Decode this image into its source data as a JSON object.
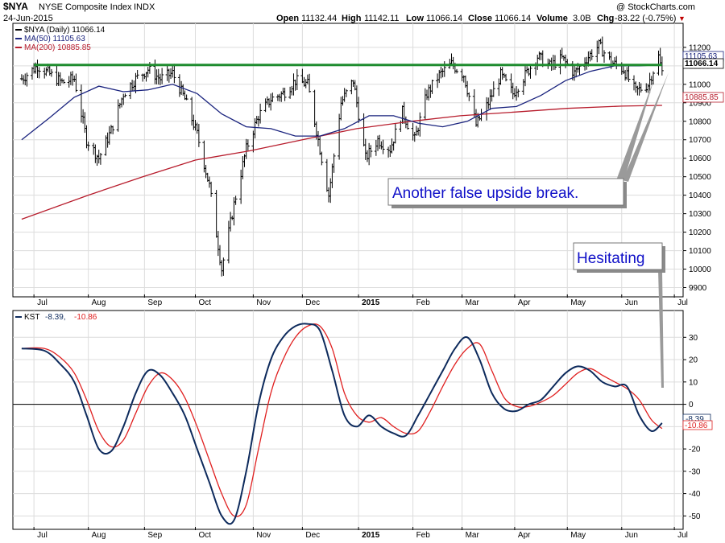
{
  "header": {
    "symbol": "$NYA",
    "name": "NYSE Composite Index",
    "exchange": "INDX",
    "date": "24-Jun-2015",
    "open_label": "Open",
    "open": "11132.44",
    "high_label": "High",
    "high": "11142.11",
    "low_label": "Low",
    "low": "11066.14",
    "close_label": "Close",
    "close": "11066.14",
    "volume_label": "Volume",
    "volume": "3.0B",
    "chg_label": "Chg",
    "chg": "-83.22 (-0.75%)",
    "chg_arrow": "▼",
    "watermark": "@ StockCharts.com"
  },
  "colors": {
    "price": "#000000",
    "ma50": "#1a237e",
    "ma200": "#b71c2c",
    "kst": "#0d2a5c",
    "kst_signal": "#e02020",
    "resistance": "#1e8c2e",
    "annotation": "#1010c8",
    "down_arrow": "#c00000"
  },
  "legend": {
    "price": "$NYA (Daily) 11066.14",
    "ma50": "MA(50) 11105.63",
    "ma200": "MA(200) 10885.85",
    "kst_name": "KST",
    "kst_value": "-8.39,",
    "kst_signal_value": "-10.86"
  },
  "tags": {
    "ma50": "11105.63",
    "close": "11066.14",
    "ma200": "10885.85",
    "kst": "-8.39",
    "kst_signal": "-10.86"
  },
  "annotations": {
    "upside_break": "Another false upside break.",
    "hesitating": "Hesitating"
  },
  "chart_data": {
    "type": "line",
    "title": "NYSE Composite Index",
    "x_months": [
      "Jul",
      "Aug",
      "Sep",
      "Oct",
      "Nov",
      "Dec",
      "2015",
      "Feb",
      "Mar",
      "Apr",
      "May",
      "Jun",
      "Jul"
    ],
    "price_panel": {
      "ylim": [
        9850,
        11330
      ],
      "yticks": [
        9900,
        10000,
        10100,
        10200,
        10300,
        10400,
        10500,
        10600,
        10700,
        10800,
        10900,
        11000,
        11100,
        11200
      ],
      "resistance_level": 11105,
      "series": [
        {
          "name": "$NYA (Daily)",
          "style": "ohlc",
          "points": [
            [
              "2014-06-24",
              11030
            ],
            [
              "2014-07-03",
              11100
            ],
            [
              "2014-07-17",
              11010
            ],
            [
              "2014-07-24",
              11030
            ],
            [
              "2014-07-31",
              10700
            ],
            [
              "2014-08-07",
              10600
            ],
            [
              "2014-08-14",
              10750
            ],
            [
              "2014-08-21",
              10950
            ],
            [
              "2014-08-28",
              11030
            ],
            [
              "2014-09-04",
              11080
            ],
            [
              "2014-09-11",
              11030
            ],
            [
              "2014-09-18",
              11060
            ],
            [
              "2014-09-25",
              10920
            ],
            [
              "2014-10-02",
              10730
            ],
            [
              "2014-10-09",
              10450
            ],
            [
              "2014-10-16",
              10000
            ],
            [
              "2014-10-23",
              10350
            ],
            [
              "2014-10-30",
              10650
            ],
            [
              "2014-11-06",
              10830
            ],
            [
              "2014-11-13",
              10920
            ],
            [
              "2014-11-20",
              10950
            ],
            [
              "2014-11-27",
              11020
            ],
            [
              "2014-12-04",
              11000
            ],
            [
              "2014-12-11",
              10650
            ],
            [
              "2014-12-16",
              10400
            ],
            [
              "2014-12-23",
              10900
            ],
            [
              "2014-12-30",
              11020
            ],
            [
              "2015-01-06",
              10600
            ],
            [
              "2015-01-13",
              10700
            ],
            [
              "2015-01-20",
              10650
            ],
            [
              "2015-01-27",
              10850
            ],
            [
              "2015-02-03",
              10700
            ],
            [
              "2015-02-10",
              10950
            ],
            [
              "2015-02-17",
              11050
            ],
            [
              "2015-02-24",
              11110
            ],
            [
              "2015-03-03",
              11050
            ],
            [
              "2015-03-10",
              10780
            ],
            [
              "2015-03-17",
              10900
            ],
            [
              "2015-03-24",
              11050
            ],
            [
              "2015-03-31",
              10950
            ],
            [
              "2015-04-07",
              11050
            ],
            [
              "2015-04-14",
              11150
            ],
            [
              "2015-04-21",
              11100
            ],
            [
              "2015-04-28",
              11140
            ],
            [
              "2015-05-05",
              11060
            ],
            [
              "2015-05-12",
              11140
            ],
            [
              "2015-05-19",
              11210
            ],
            [
              "2015-05-26",
              11120
            ],
            [
              "2015-06-02",
              11080
            ],
            [
              "2015-06-09",
              10960
            ],
            [
              "2015-06-16",
              11000
            ],
            [
              "2015-06-22",
              11150
            ],
            [
              "2015-06-24",
              11066
            ]
          ]
        },
        {
          "name": "MA(50)",
          "style": "line",
          "points": [
            [
              "2014-06-24",
              10700
            ],
            [
              "2014-07-10",
              10820
            ],
            [
              "2014-07-24",
              10930
            ],
            [
              "2014-08-07",
              10990
            ],
            [
              "2014-08-21",
              10960
            ],
            [
              "2014-09-04",
              10970
            ],
            [
              "2014-09-18",
              11000
            ],
            [
              "2014-10-02",
              10950
            ],
            [
              "2014-10-16",
              10840
            ],
            [
              "2014-10-30",
              10770
            ],
            [
              "2014-11-13",
              10760
            ],
            [
              "2014-11-27",
              10720
            ],
            [
              "2014-12-11",
              10720
            ],
            [
              "2014-12-25",
              10760
            ],
            [
              "2015-01-08",
              10830
            ],
            [
              "2015-01-22",
              10830
            ],
            [
              "2015-02-05",
              10790
            ],
            [
              "2015-02-19",
              10770
            ],
            [
              "2015-03-05",
              10800
            ],
            [
              "2015-03-19",
              10870
            ],
            [
              "2015-04-02",
              10880
            ],
            [
              "2015-04-16",
              10940
            ],
            [
              "2015-04-30",
              11020
            ],
            [
              "2015-05-14",
              11070
            ],
            [
              "2015-05-28",
              11100
            ],
            [
              "2015-06-11",
              11100
            ],
            [
              "2015-06-24",
              11105.63
            ]
          ]
        },
        {
          "name": "MA(200)",
          "style": "line",
          "points": [
            [
              "2014-06-24",
              10270
            ],
            [
              "2014-08-01",
              10400
            ],
            [
              "2014-09-01",
              10500
            ],
            [
              "2014-10-01",
              10590
            ],
            [
              "2014-11-01",
              10640
            ],
            [
              "2014-12-01",
              10700
            ],
            [
              "2015-01-01",
              10760
            ],
            [
              "2015-02-01",
              10800
            ],
            [
              "2015-03-01",
              10830
            ],
            [
              "2015-04-01",
              10850
            ],
            [
              "2015-05-01",
              10870
            ],
            [
              "2015-06-01",
              10882
            ],
            [
              "2015-06-24",
              10885.85
            ]
          ]
        }
      ]
    },
    "indicator_panel": {
      "name": "KST",
      "ylim": [
        -56,
        42
      ],
      "yticks": [
        -50,
        -40,
        -30,
        -20,
        -10,
        0,
        10,
        20,
        30
      ],
      "zero_line": 0,
      "series": [
        {
          "name": "KST",
          "points": [
            [
              "2014-06-24",
              25
            ],
            [
              "2014-07-07",
              24
            ],
            [
              "2014-07-16",
              18
            ],
            [
              "2014-07-24",
              10
            ],
            [
              "2014-07-31",
              -5
            ],
            [
              "2014-08-07",
              -20
            ],
            [
              "2014-08-14",
              -21
            ],
            [
              "2014-08-21",
              -10
            ],
            [
              "2014-08-28",
              5
            ],
            [
              "2014-09-04",
              15
            ],
            [
              "2014-09-11",
              13
            ],
            [
              "2014-09-18",
              5
            ],
            [
              "2014-09-25",
              -5
            ],
            [
              "2014-10-02",
              -20
            ],
            [
              "2014-10-09",
              -35
            ],
            [
              "2014-10-16",
              -50
            ],
            [
              "2014-10-23",
              -52
            ],
            [
              "2014-10-30",
              -30
            ],
            [
              "2014-11-06",
              0
            ],
            [
              "2014-11-13",
              20
            ],
            [
              "2014-11-20",
              30
            ],
            [
              "2014-11-27",
              35
            ],
            [
              "2014-12-04",
              36
            ],
            [
              "2014-12-11",
              33
            ],
            [
              "2014-12-18",
              15
            ],
            [
              "2014-12-25",
              -5
            ],
            [
              "2015-01-01",
              -10
            ],
            [
              "2015-01-08",
              -5
            ],
            [
              "2015-01-15",
              -10
            ],
            [
              "2015-01-22",
              -13
            ],
            [
              "2015-01-29",
              -14
            ],
            [
              "2015-02-05",
              -5
            ],
            [
              "2015-02-12",
              5
            ],
            [
              "2015-02-19",
              15
            ],
            [
              "2015-02-26",
              25
            ],
            [
              "2015-03-05",
              30
            ],
            [
              "2015-03-12",
              20
            ],
            [
              "2015-03-19",
              5
            ],
            [
              "2015-03-26",
              -2
            ],
            [
              "2015-04-02",
              -3
            ],
            [
              "2015-04-09",
              0
            ],
            [
              "2015-04-16",
              2
            ],
            [
              "2015-04-23",
              8
            ],
            [
              "2015-04-30",
              14
            ],
            [
              "2015-05-07",
              17
            ],
            [
              "2015-05-14",
              15
            ],
            [
              "2015-05-21",
              10
            ],
            [
              "2015-05-28",
              8
            ],
            [
              "2015-06-04",
              8
            ],
            [
              "2015-06-11",
              -5
            ],
            [
              "2015-06-18",
              -12
            ],
            [
              "2015-06-24",
              -8.39
            ]
          ]
        },
        {
          "name": "KST Signal",
          "points": [
            [
              "2014-06-24",
              25
            ],
            [
              "2014-07-07",
              25
            ],
            [
              "2014-07-16",
              21
            ],
            [
              "2014-07-24",
              14
            ],
            [
              "2014-07-31",
              2
            ],
            [
              "2014-08-07",
              -12
            ],
            [
              "2014-08-14",
              -19
            ],
            [
              "2014-08-21",
              -16
            ],
            [
              "2014-08-28",
              -4
            ],
            [
              "2014-09-04",
              8
            ],
            [
              "2014-09-11",
              14
            ],
            [
              "2014-09-18",
              11
            ],
            [
              "2014-09-25",
              3
            ],
            [
              "2014-10-02",
              -10
            ],
            [
              "2014-10-09",
              -25
            ],
            [
              "2014-10-16",
              -40
            ],
            [
              "2014-10-23",
              -50
            ],
            [
              "2014-10-30",
              -45
            ],
            [
              "2014-11-06",
              -20
            ],
            [
              "2014-11-13",
              5
            ],
            [
              "2014-11-20",
              20
            ],
            [
              "2014-11-27",
              30
            ],
            [
              "2014-12-04",
              35
            ],
            [
              "2014-12-11",
              35
            ],
            [
              "2014-12-18",
              25
            ],
            [
              "2014-12-25",
              5
            ],
            [
              "2015-01-01",
              -5
            ],
            [
              "2015-01-08",
              -8
            ],
            [
              "2015-01-15",
              -6
            ],
            [
              "2015-01-22",
              -10
            ],
            [
              "2015-01-29",
              -13
            ],
            [
              "2015-02-05",
              -12
            ],
            [
              "2015-02-12",
              -3
            ],
            [
              "2015-02-19",
              8
            ],
            [
              "2015-02-26",
              18
            ],
            [
              "2015-03-05",
              25
            ],
            [
              "2015-03-12",
              27
            ],
            [
              "2015-03-19",
              15
            ],
            [
              "2015-03-26",
              3
            ],
            [
              "2015-04-02",
              -1
            ],
            [
              "2015-04-09",
              -1
            ],
            [
              "2015-04-16",
              1
            ],
            [
              "2015-04-23",
              4
            ],
            [
              "2015-04-30",
              9
            ],
            [
              "2015-05-07",
              14
            ],
            [
              "2015-05-14",
              16
            ],
            [
              "2015-05-21",
              13
            ],
            [
              "2015-05-28",
              10
            ],
            [
              "2015-06-04",
              7
            ],
            [
              "2015-06-11",
              2
            ],
            [
              "2015-06-18",
              -7
            ],
            [
              "2015-06-24",
              -10.86
            ]
          ]
        }
      ]
    }
  }
}
